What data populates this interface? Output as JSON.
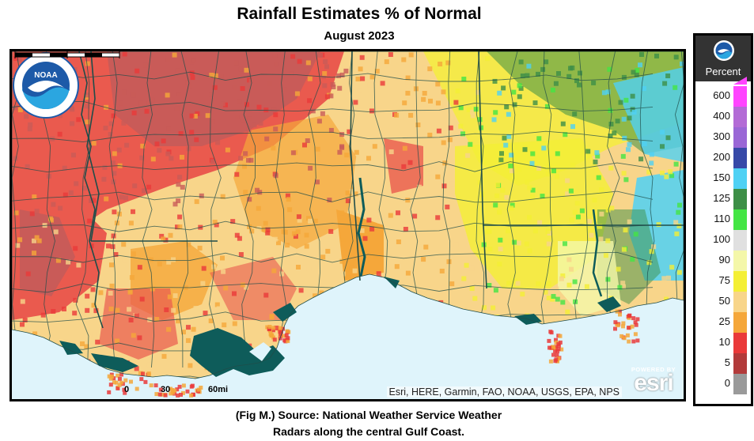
{
  "title": "Rainfall Estimates % of Normal",
  "subtitle": "August 2023",
  "map": {
    "attribution": "Esri, HERE, Garmin, FAO, NOAA, USGS, EPA, NPS",
    "scalebar": {
      "labels": [
        "0",
        "30",
        "60mi"
      ]
    },
    "esri_logo": {
      "powered_by": "POWERED BY",
      "brand": "esri"
    },
    "noaa_logo_icon": "noaa-seal-icon",
    "colors": {
      "water": "#dff4fb",
      "coast_marsh": "#0e5c5a",
      "border": "#1f4d4a"
    }
  },
  "legend": {
    "header": "Percent",
    "header_icon": "noaa-logo-icon",
    "items": [
      {
        "label": "600",
        "color": "#ff44ff"
      },
      {
        "label": "400",
        "color": "#b36bd6"
      },
      {
        "label": "300",
        "color": "#9a67d6"
      },
      {
        "label": "200",
        "color": "#3749a8"
      },
      {
        "label": "150",
        "color": "#4fd1f4"
      },
      {
        "label": "125",
        "color": "#3d8f47"
      },
      {
        "label": "110",
        "color": "#44e544"
      },
      {
        "label": "100",
        "color": "#e0e0e0"
      },
      {
        "label": "90",
        "color": "#f4f7a9"
      },
      {
        "label": "75",
        "color": "#f4ef34"
      },
      {
        "label": "50",
        "color": "#f8d58a"
      },
      {
        "label": "25",
        "color": "#f5a73a"
      },
      {
        "label": "10",
        "color": "#ea3a3a"
      },
      {
        "label": "5",
        "color": "#b23b3b"
      },
      {
        "label": "0",
        "color": "#9a9a9a"
      }
    ]
  },
  "caption": {
    "line1": "(Fig M.) Source: National Weather Service Weather",
    "line2": "Radars along the central Gulf Coast."
  }
}
